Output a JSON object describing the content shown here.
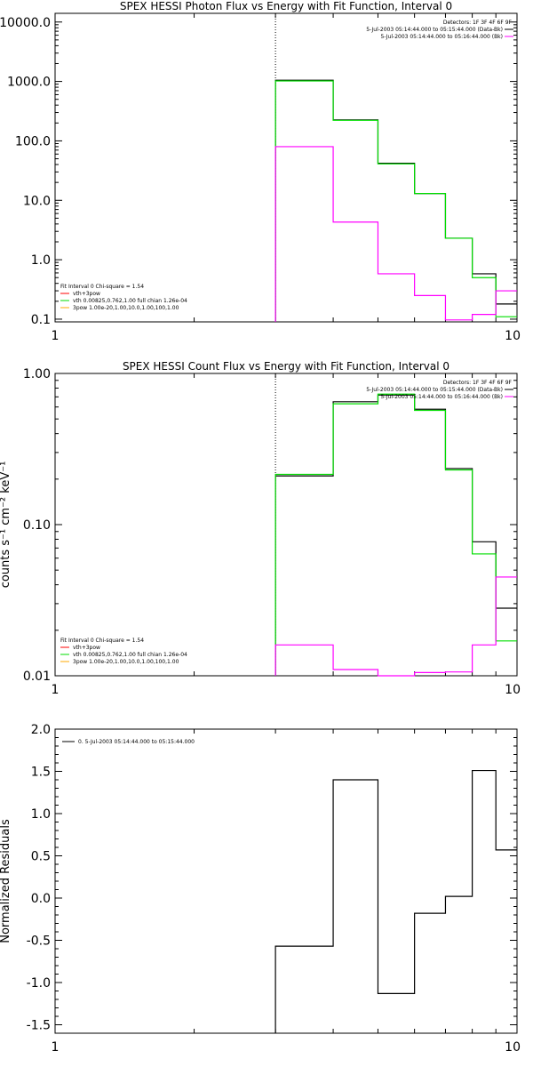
{
  "colors": {
    "data": "#000000",
    "model": "#00dd00",
    "background": "#ff00ff",
    "component2": "#ff0000",
    "component3": "#ffaa00"
  },
  "chart_data": [
    {
      "type": "line",
      "title": "SPEX HESSI Photon Flux vs Energy with Fit Function, Interval 0",
      "xlabel": "",
      "ylabel": "",
      "xscale": "log",
      "yscale": "log",
      "xlim": [
        1,
        10
      ],
      "ylim": [
        0.09,
        14000
      ],
      "xticks": [
        1,
        10
      ],
      "xtick_labels": [
        "1",
        "10"
      ],
      "yticks": [
        0.1,
        1,
        10,
        100,
        1000,
        10000
      ],
      "ytick_labels": [
        "0.1",
        "1.0",
        "10.0",
        "100.0",
        "1000.0",
        "10000.0"
      ],
      "vline": 3,
      "legend_top": [
        "Detectors: 1F 3F 4F 6F 9F",
        "5-Jul-2003 05:14:44.000 to 05:15:44.000 (Data-Bk)",
        "5-Jul-2003 05:14:44.000 to 05:16:44.000 (Bk)"
      ],
      "legend_top_colors": [
        "",
        "#000000",
        "#ff00ff"
      ],
      "legend_bottom": [
        "Fit Interval 0   Chi-square = 1.54",
        "vth+3pow",
        "vth 0.00825,0.762,1.00  full chian 1.26e-04",
        "3pow 1.00e-20,1.00,10.0,1.00,100,1.00"
      ],
      "legend_bottom_colors": [
        "",
        "#ff0000",
        "#00dd00",
        "#ffaa00"
      ],
      "edges": [
        3,
        4,
        5,
        6,
        7,
        8,
        9,
        10
      ],
      "series": [
        {
          "name": "Data-Bk",
          "color": "#000000",
          "values": [
            1050,
            225,
            42,
            13,
            2.3,
            0.58,
            0.18
          ]
        },
        {
          "name": "vth+3pow",
          "color": "#00dd00",
          "values": [
            1020,
            222,
            41,
            13,
            2.3,
            0.5,
            0.11
          ]
        },
        {
          "name": "Bk",
          "color": "#ff00ff",
          "values": [
            80,
            4.3,
            0.58,
            0.25,
            0.097,
            0.12,
            0.3
          ]
        }
      ]
    },
    {
      "type": "line",
      "title": "SPEX HESSI Count Flux vs Energy with Fit Function, Interval 0",
      "xlabel": "",
      "ylabel": "counts s⁻¹ cm⁻² keV⁻¹",
      "xscale": "log",
      "yscale": "log",
      "xlim": [
        1,
        10
      ],
      "ylim": [
        0.01,
        1.0
      ],
      "xticks": [
        1,
        10
      ],
      "xtick_labels": [
        "1",
        "10"
      ],
      "yticks": [
        0.01,
        0.1,
        1.0
      ],
      "ytick_labels": [
        "0.01",
        "0.10",
        "1.00"
      ],
      "vline": 3,
      "legend_top": [
        "Detectors: 1F 3F 4F 6F 9F",
        "5-Jul-2003 05:14:44.000 to 05:15:44.000 (Data-Bk)",
        "5-Jul-2003 05:14:44.000 to 05:16:44.000 (Bk)"
      ],
      "legend_top_colors": [
        "",
        "#000000",
        "#ff00ff"
      ],
      "legend_bottom": [
        "Fit Interval 0   Chi-square = 1.54",
        "vth+3pow",
        "vth 0.00825,0.762,1.00  full chian 1.26e-04",
        "3pow 1.00e-20,1.00,10.0,1.00,100,1.00"
      ],
      "legend_bottom_colors": [
        "",
        "#ff0000",
        "#00dd00",
        "#ffaa00"
      ],
      "edges": [
        3,
        4,
        5,
        6,
        7,
        8,
        9,
        10
      ],
      "series": [
        {
          "name": "Data-Bk",
          "color": "#000000",
          "values": [
            0.21,
            0.65,
            0.72,
            0.58,
            0.235,
            0.077,
            0.028
          ]
        },
        {
          "name": "vth+3pow",
          "color": "#00dd00",
          "values": [
            0.215,
            0.63,
            0.73,
            0.57,
            0.23,
            0.064,
            0.017
          ]
        },
        {
          "name": "Bk",
          "color": "#ff00ff",
          "values": [
            0.016,
            0.011,
            0.01,
            0.0105,
            0.0106,
            0.016,
            0.045
          ]
        }
      ]
    },
    {
      "type": "line",
      "title": "",
      "xlabel": "",
      "ylabel": "Normalized Residuals",
      "xscale": "log",
      "yscale": "linear",
      "xlim": [
        1,
        10
      ],
      "ylim": [
        -1.6,
        2.0
      ],
      "xticks": [
        1,
        10
      ],
      "xtick_labels": [
        "1",
        "10"
      ],
      "yticks": [
        -1.5,
        -1.0,
        -0.5,
        0.0,
        0.5,
        1.0,
        1.5,
        2.0
      ],
      "ytick_labels": [
        "-1.5",
        "-1.0",
        "-0.5",
        "0.0",
        "0.5",
        "1.0",
        "1.5",
        "2.0"
      ],
      "legend_top": [
        "0.  5-Jul-2003 05:14:44.000 to 05:15:44.000"
      ],
      "legend_top_colors": [
        "#000000"
      ],
      "edges": [
        3,
        4,
        5,
        6,
        7,
        8,
        9,
        10
      ],
      "series": [
        {
          "name": "0.  5-Jul-2003 05:14:44.000 to 05:15:44.000",
          "color": "#000000",
          "values": [
            -0.57,
            1.4,
            -1.13,
            -0.18,
            0.02,
            1.51,
            0.57
          ]
        }
      ]
    }
  ]
}
